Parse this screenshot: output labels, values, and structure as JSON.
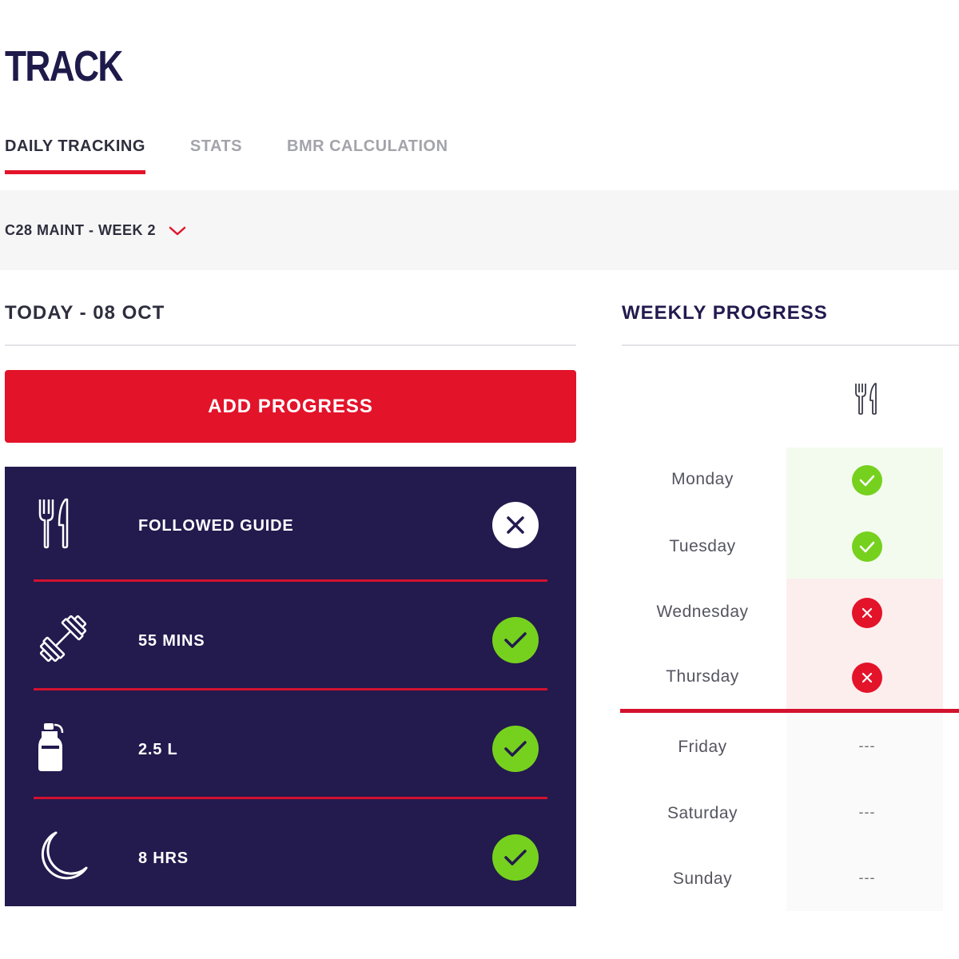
{
  "header": {
    "title": "TRACK"
  },
  "tabs": [
    {
      "label": "DAILY TRACKING",
      "active": true
    },
    {
      "label": "STATS",
      "active": false
    },
    {
      "label": "BMR CALCULATION",
      "active": false
    }
  ],
  "program": {
    "label": "C28 MAINT - WEEK 2",
    "icon": "chevron-down-icon"
  },
  "today": {
    "title": "TODAY - 08 OCT",
    "add_button": "ADD PROGRESS",
    "items": [
      {
        "icon": "fork-knife-icon",
        "label": "FOLLOWED GUIDE",
        "status": "incomplete"
      },
      {
        "icon": "dumbbell-icon",
        "label": "55 MINS",
        "status": "complete"
      },
      {
        "icon": "water-bottle-icon",
        "label": "2.5 L",
        "status": "complete"
      },
      {
        "icon": "moon-icon",
        "label": "8 HRS",
        "status": "complete"
      }
    ]
  },
  "weekly": {
    "title": "WEEKLY PROGRESS",
    "column_icon": "fork-knife-icon",
    "days": [
      {
        "name": "Monday",
        "status": "complete"
      },
      {
        "name": "Tuesday",
        "status": "complete"
      },
      {
        "name": "Wednesday",
        "status": "incomplete"
      },
      {
        "name": "Thursday",
        "status": "incomplete"
      },
      {
        "name": "Friday",
        "status": "pending",
        "value": "---"
      },
      {
        "name": "Saturday",
        "status": "pending",
        "value": "---"
      },
      {
        "name": "Sunday",
        "status": "pending",
        "value": "---"
      }
    ]
  },
  "colors": {
    "accent": "#e3132a",
    "navy": "#231a4e",
    "success": "#76d11e"
  }
}
